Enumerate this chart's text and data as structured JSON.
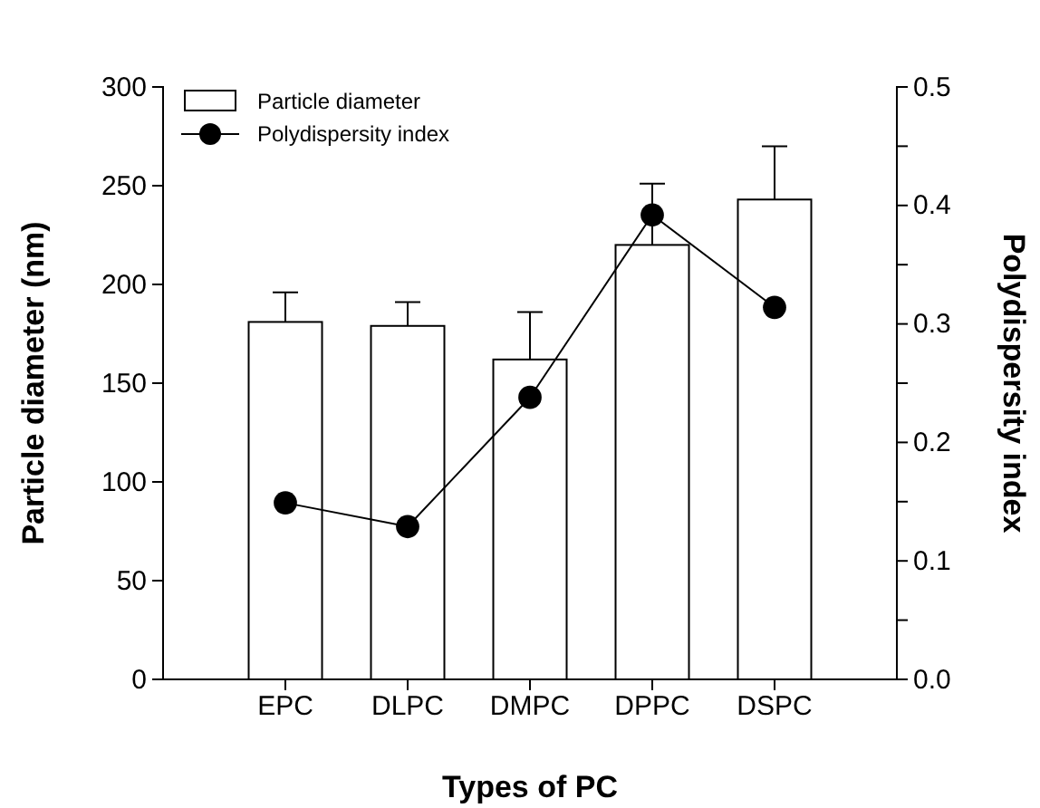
{
  "chart_data": {
    "type": "bar",
    "xlabel": "Types of PC",
    "ylabel": "Particle diameter (nm)",
    "y2label": "Polydispersity index",
    "categories": [
      "EPC",
      "DLPC",
      "DMPC",
      "DPPC",
      "DSPC"
    ],
    "series": [
      {
        "name": "Particle diameter",
        "color": "#ffffff",
        "values": [
          181,
          179,
          162,
          220,
          243
        ],
        "errors": [
          [
            181,
            196
          ],
          [
            179,
            191
          ],
          [
            162,
            186
          ],
          [
            220,
            251
          ],
          [
            243,
            270
          ]
        ]
      },
      {
        "name": "Polydispersity index",
        "type": "line",
        "axis": "y2",
        "color": "#000000",
        "values": [
          0.149,
          0.129,
          0.238,
          0.392,
          0.314
        ],
        "marker": "circle"
      }
    ],
    "ylim": [
      0,
      300
    ],
    "yticks": [
      0,
      50,
      100,
      150,
      200,
      250,
      300
    ],
    "y2lim": [
      0,
      0.5
    ],
    "y2ticks": [
      {
        "value": 0,
        "label": "0.0"
      },
      {
        "value": 0.05,
        "label": null
      },
      {
        "value": 0.1,
        "label": "0.1"
      },
      {
        "value": 0.15,
        "label": null
      },
      {
        "value": 0.2,
        "label": "0.2"
      },
      {
        "value": 0.25,
        "label": null
      },
      {
        "value": 0.3,
        "label": "0.3"
      },
      {
        "value": 0.35,
        "label": null
      },
      {
        "value": 0.4,
        "label": "0.4"
      },
      {
        "value": 0.45,
        "label": null
      },
      {
        "value": 0.5,
        "label": "0.5"
      }
    ],
    "grid": false,
    "legend": "top left"
  }
}
